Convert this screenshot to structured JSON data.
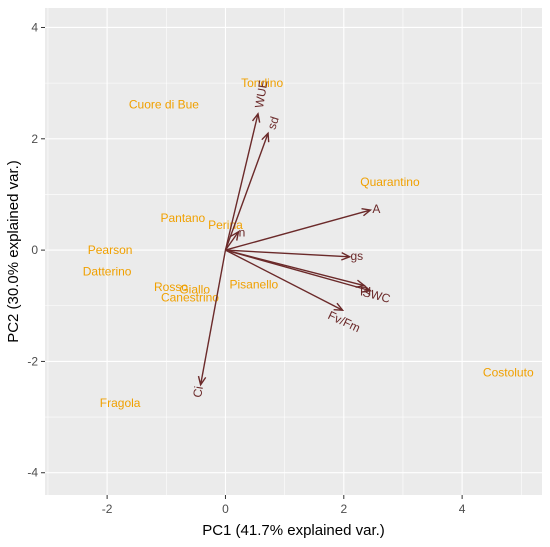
{
  "colors": {
    "panel": "#ebebeb",
    "grid": "#ffffff",
    "observation": "#f0a000",
    "variable": "#6b2a2a",
    "tick_text": "#4d4d4d"
  },
  "chart_data": {
    "type": "scatter",
    "subtype": "pca-biplot",
    "title": "",
    "xlabel": "PC1 (41.7% explained var.)",
    "ylabel": "PC2 (30.0% explained var.)",
    "xlim": [
      -3.05,
      5.35
    ],
    "ylim": [
      -4.4,
      4.35
    ],
    "xticks": [
      -2,
      0,
      2,
      4
    ],
    "yticks": [
      -4,
      -2,
      0,
      2,
      4
    ],
    "grid": true,
    "observations": [
      {
        "name": "Tondino",
        "x": 0.62,
        "y": 3.0
      },
      {
        "name": "Cuore di Bue",
        "x": -1.04,
        "y": 2.62
      },
      {
        "name": "Quarantino",
        "x": 2.78,
        "y": 1.22
      },
      {
        "name": "Pantano",
        "x": -0.72,
        "y": 0.58
      },
      {
        "name": "Perina",
        "x": 0.0,
        "y": 0.45
      },
      {
        "name": "Pearson",
        "x": -1.95,
        "y": 0.0
      },
      {
        "name": "Datterino",
        "x": -2.0,
        "y": -0.38
      },
      {
        "name": "Rosso",
        "x": -0.92,
        "y": -0.66
      },
      {
        "name": "Giallo",
        "x": -0.52,
        "y": -0.71
      },
      {
        "name": "Canestrino",
        "x": -0.6,
        "y": -0.85
      },
      {
        "name": "Pisanello",
        "x": 0.48,
        "y": -0.62
      },
      {
        "name": "Costoluto",
        "x": 4.78,
        "y": -2.2
      },
      {
        "name": "Fragola",
        "x": -1.78,
        "y": -2.75
      }
    ],
    "variables": [
      {
        "name": "WUE",
        "x": 0.55,
        "y": 2.45,
        "label_x": 0.62,
        "label_y": 2.8,
        "label_angle": -80
      },
      {
        "name": "sd",
        "x": 0.72,
        "y": 2.1,
        "label_x": 0.82,
        "label_y": 2.28,
        "label_angle": -72
      },
      {
        "name": "A",
        "x": 2.45,
        "y": 0.72,
        "label_x": 2.55,
        "label_y": 0.72,
        "label_angle": 0
      },
      {
        "name": "n",
        "x": 0.22,
        "y": 0.33,
        "label_x": 0.28,
        "label_y": 0.3,
        "label_angle": 0
      },
      {
        "name": "gs",
        "x": 2.1,
        "y": -0.12,
        "label_x": 2.22,
        "label_y": -0.12,
        "label_angle": 0
      },
      {
        "name": "PI",
        "x": 2.35,
        "y": -0.64,
        "label_x": 2.37,
        "label_y": -0.76,
        "label_angle": 0
      },
      {
        "name": "SWC",
        "x": 2.45,
        "y": -0.73,
        "label_x": 2.55,
        "label_y": -0.83,
        "label_angle": 15
      },
      {
        "name": "Fv/Fm",
        "x": 1.98,
        "y": -1.08,
        "label_x": 2.0,
        "label_y": -1.3,
        "label_angle": 25
      },
      {
        "name": "Ci",
        "x": -0.42,
        "y": -2.42,
        "label_x": -0.45,
        "label_y": -2.55,
        "label_angle": -80
      }
    ]
  }
}
